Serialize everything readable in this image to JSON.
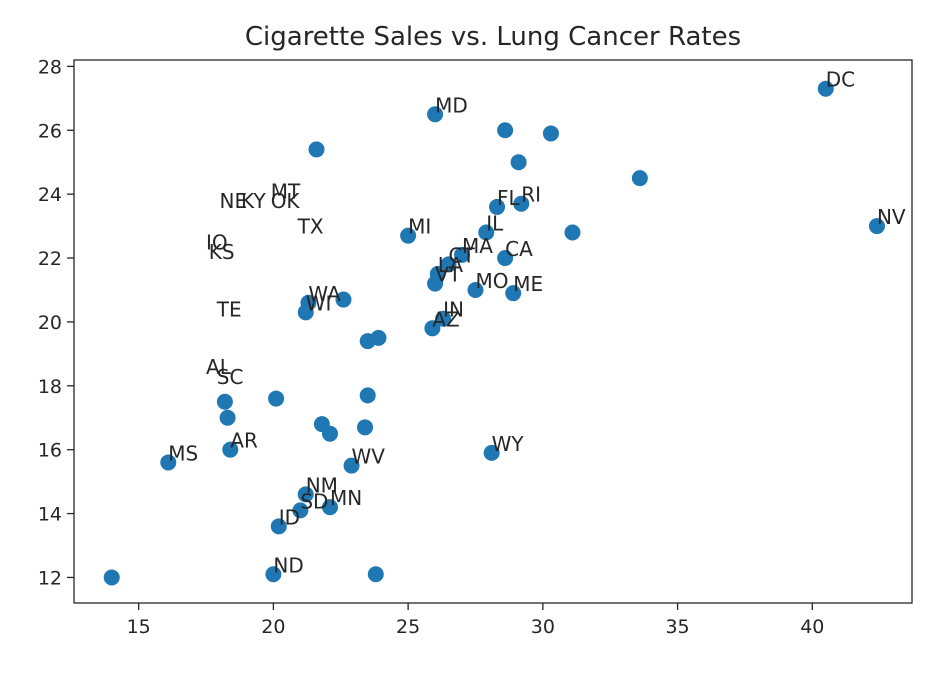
{
  "chart_data": {
    "type": "scatter",
    "title": "Cigarette Sales vs. Lung Cancer Rates",
    "xlabel": "",
    "ylabel": "",
    "xlim": [
      12.6,
      43.7
    ],
    "ylim": [
      11.2,
      28.2
    ],
    "xticks": [
      15,
      20,
      25,
      30,
      35,
      40
    ],
    "yticks": [
      12,
      14,
      16,
      18,
      20,
      22,
      24,
      26,
      28
    ],
    "grid": false,
    "legend": "none",
    "point_color": "#1f77b4",
    "points": [
      {
        "x": 40.5,
        "y": 27.3,
        "label": "DC"
      },
      {
        "x": 42.4,
        "y": 23.0,
        "label": "NV"
      },
      {
        "x": 26.0,
        "y": 26.5,
        "label": "MD"
      },
      {
        "x": 28.6,
        "y": 26.0,
        "label": ""
      },
      {
        "x": 30.3,
        "y": 25.9,
        "label": ""
      },
      {
        "x": 21.6,
        "y": 25.4,
        "label": ""
      },
      {
        "x": 29.1,
        "y": 25.0,
        "label": ""
      },
      {
        "x": 33.6,
        "y": 24.5,
        "label": ""
      },
      {
        "x": 28.3,
        "y": 23.6,
        "label": "FL"
      },
      {
        "x": 29.2,
        "y": 23.7,
        "label": "RI"
      },
      {
        "x": 25.0,
        "y": 22.7,
        "label": "MI"
      },
      {
        "x": 27.9,
        "y": 22.8,
        "label": "IL"
      },
      {
        "x": 31.1,
        "y": 22.8,
        "label": ""
      },
      {
        "x": 28.6,
        "y": 22.0,
        "label": "CA"
      },
      {
        "x": 27.0,
        "y": 22.1,
        "label": "MA"
      },
      {
        "x": 26.5,
        "y": 21.8,
        "label": "CT"
      },
      {
        "x": 26.1,
        "y": 21.5,
        "label": "LA"
      },
      {
        "x": 26.0,
        "y": 21.2,
        "label": "VT"
      },
      {
        "x": 27.5,
        "y": 21.0,
        "label": "MO"
      },
      {
        "x": 28.9,
        "y": 20.9,
        "label": "ME"
      },
      {
        "x": 22.6,
        "y": 20.7,
        "label": ""
      },
      {
        "x": 21.3,
        "y": 20.6,
        "label": "WA"
      },
      {
        "x": 21.2,
        "y": 20.3,
        "label": "WI"
      },
      {
        "x": 26.3,
        "y": 20.1,
        "label": "IN"
      },
      {
        "x": 25.9,
        "y": 19.8,
        "label": "AZ"
      },
      {
        "x": 23.5,
        "y": 19.4,
        "label": ""
      },
      {
        "x": 23.9,
        "y": 19.5,
        "label": ""
      },
      {
        "x": 23.5,
        "y": 17.7,
        "label": ""
      },
      {
        "x": 20.1,
        "y": 17.6,
        "label": ""
      },
      {
        "x": 18.2,
        "y": 17.5,
        "label": ""
      },
      {
        "x": 18.3,
        "y": 17.0,
        "label": ""
      },
      {
        "x": 21.8,
        "y": 16.8,
        "label": ""
      },
      {
        "x": 22.1,
        "y": 16.5,
        "label": ""
      },
      {
        "x": 23.4,
        "y": 16.7,
        "label": ""
      },
      {
        "x": 18.4,
        "y": 16.0,
        "label": "AR"
      },
      {
        "x": 16.1,
        "y": 15.6,
        "label": "MS"
      },
      {
        "x": 22.9,
        "y": 15.5,
        "label": "WV"
      },
      {
        "x": 28.1,
        "y": 15.9,
        "label": "WY"
      },
      {
        "x": 21.2,
        "y": 14.6,
        "label": "NM"
      },
      {
        "x": 21.0,
        "y": 14.1,
        "label": "SD"
      },
      {
        "x": 22.1,
        "y": 14.2,
        "label": "MN"
      },
      {
        "x": 20.2,
        "y": 13.6,
        "label": "ID"
      },
      {
        "x": 14.0,
        "y": 12.0,
        "label": ""
      },
      {
        "x": 20.0,
        "y": 12.1,
        "label": "ND"
      },
      {
        "x": 23.8,
        "y": 12.1,
        "label": ""
      }
    ],
    "offchart_labels": [
      {
        "x": 18.0,
        "y": 23.5,
        "label": "NE"
      },
      {
        "x": 18.8,
        "y": 23.5,
        "label": "KY"
      },
      {
        "x": 19.9,
        "y": 23.8,
        "label": "MT"
      },
      {
        "x": 19.9,
        "y": 23.5,
        "label": "OK"
      },
      {
        "x": 20.9,
        "y": 22.7,
        "label": "TX"
      },
      {
        "x": 17.5,
        "y": 22.2,
        "label": "IO"
      },
      {
        "x": 17.6,
        "y": 21.9,
        "label": "KS"
      },
      {
        "x": 17.9,
        "y": 20.1,
        "label": "TE"
      },
      {
        "x": 17.5,
        "y": 18.3,
        "label": "AL"
      },
      {
        "x": 17.9,
        "y": 18.0,
        "label": "SC"
      }
    ]
  }
}
